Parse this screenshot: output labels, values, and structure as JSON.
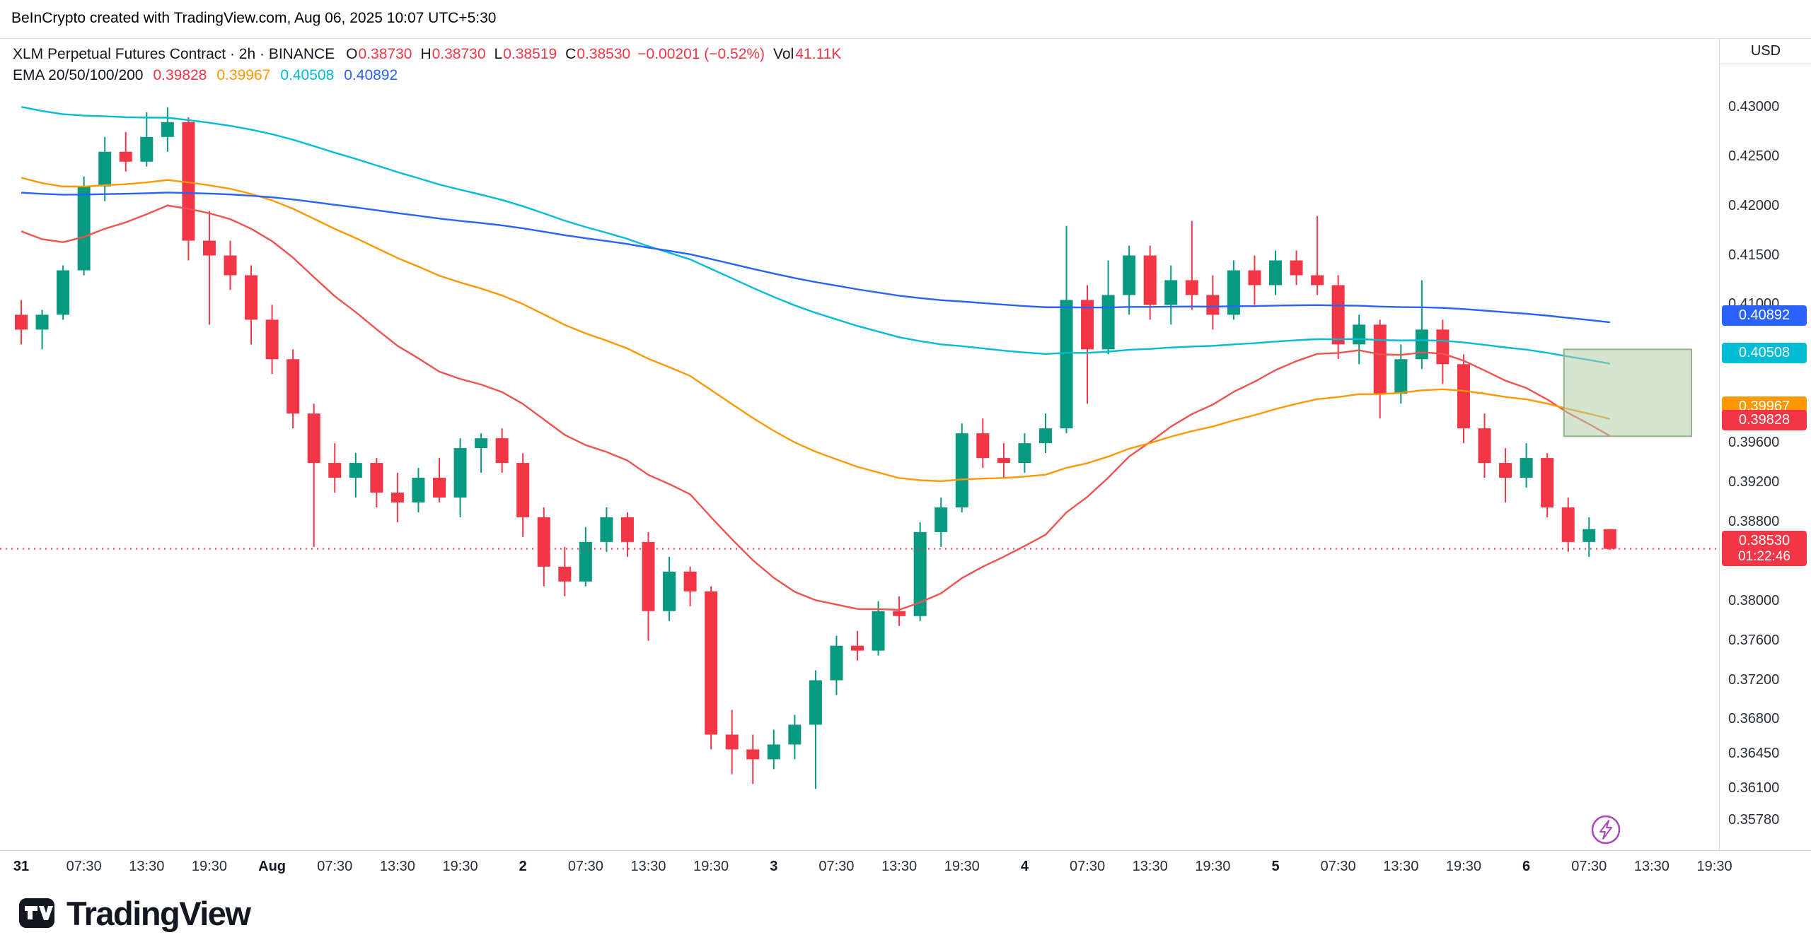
{
  "watermark": "BeInCrypto created with TradingView.com, Aug 06, 2025 10:07 UTC+5:30",
  "legend": {
    "title": "XLM Perpetual Futures Contract · 2h · BINANCE",
    "o_label": "O",
    "o": "0.38730",
    "h_label": "H",
    "h": "0.38730",
    "l_label": "L",
    "l": "0.38519",
    "c_label": "C",
    "c": "0.38530",
    "change": "−0.00201 (−0.52%)",
    "vol_label": "Vol",
    "vol": "41.11K",
    "ema_label": "EMA 20/50/100/200",
    "ema_values": [
      {
        "text": "0.39828",
        "color": "#F23645"
      },
      {
        "text": "0.39967",
        "color": "#FF9800"
      },
      {
        "text": "0.40508",
        "color": "#00BCD4"
      },
      {
        "text": "0.40892",
        "color": "#2962FF"
      }
    ]
  },
  "branding": {
    "name": "TradingView"
  },
  "chart_data": {
    "type": "candlestick",
    "title": "XLM Perpetual Futures Contract · 2h · BINANCE",
    "symbol": "XLM Perpetual Futures Contract",
    "interval": "2h",
    "exchange": "BINANCE",
    "currency": "USD",
    "ohlc_display": {
      "open": 0.3873,
      "high": 0.3873,
      "low": 0.38519,
      "close": 0.3853,
      "change": -0.00201,
      "change_pct": -0.52,
      "volume": "41.11K"
    },
    "ylim": [
      0.3548,
      0.437
    ],
    "up_color": "#089981",
    "down_color": "#F23645",
    "candles": [
      [
        0.409,
        0.4105,
        0.406,
        0.4075
      ],
      [
        0.4075,
        0.4095,
        0.4055,
        0.409
      ],
      [
        0.409,
        0.414,
        0.4085,
        0.4135
      ],
      [
        0.4135,
        0.423,
        0.413,
        0.422
      ],
      [
        0.422,
        0.427,
        0.4205,
        0.4255
      ],
      [
        0.4255,
        0.4275,
        0.4235,
        0.4245
      ],
      [
        0.4245,
        0.4295,
        0.424,
        0.427
      ],
      [
        0.427,
        0.43,
        0.4255,
        0.4285
      ],
      [
        0.4285,
        0.429,
        0.4145,
        0.4165
      ],
      [
        0.4165,
        0.4195,
        0.408,
        0.415
      ],
      [
        0.415,
        0.4165,
        0.4115,
        0.413
      ],
      [
        0.413,
        0.414,
        0.406,
        0.4085
      ],
      [
        0.4085,
        0.41,
        0.403,
        0.4045
      ],
      [
        0.4045,
        0.4055,
        0.3975,
        0.399
      ],
      [
        0.399,
        0.4,
        0.3855,
        0.394
      ],
      [
        0.394,
        0.396,
        0.391,
        0.3925
      ],
      [
        0.3925,
        0.395,
        0.3905,
        0.394
      ],
      [
        0.394,
        0.3945,
        0.3895,
        0.391
      ],
      [
        0.391,
        0.393,
        0.388,
        0.39
      ],
      [
        0.39,
        0.3935,
        0.389,
        0.3925
      ],
      [
        0.3925,
        0.3945,
        0.39,
        0.3905
      ],
      [
        0.3905,
        0.3965,
        0.3885,
        0.3955
      ],
      [
        0.3955,
        0.397,
        0.393,
        0.3965
      ],
      [
        0.3965,
        0.3975,
        0.393,
        0.394
      ],
      [
        0.394,
        0.395,
        0.3865,
        0.3885
      ],
      [
        0.3885,
        0.3895,
        0.3815,
        0.3835
      ],
      [
        0.3835,
        0.3855,
        0.3805,
        0.382
      ],
      [
        0.382,
        0.3875,
        0.3815,
        0.386
      ],
      [
        0.386,
        0.3895,
        0.385,
        0.3885
      ],
      [
        0.3885,
        0.389,
        0.3845,
        0.386
      ],
      [
        0.386,
        0.387,
        0.376,
        0.379
      ],
      [
        0.379,
        0.3845,
        0.378,
        0.383
      ],
      [
        0.383,
        0.3835,
        0.3795,
        0.381
      ],
      [
        0.381,
        0.3815,
        0.365,
        0.3665
      ],
      [
        0.3665,
        0.369,
        0.3625,
        0.365
      ],
      [
        0.365,
        0.3665,
        0.3615,
        0.364
      ],
      [
        0.364,
        0.367,
        0.363,
        0.3655
      ],
      [
        0.3655,
        0.3685,
        0.364,
        0.3675
      ],
      [
        0.3675,
        0.373,
        0.361,
        0.372
      ],
      [
        0.372,
        0.3765,
        0.3705,
        0.3755
      ],
      [
        0.3755,
        0.377,
        0.374,
        0.375
      ],
      [
        0.375,
        0.38,
        0.3745,
        0.379
      ],
      [
        0.379,
        0.3805,
        0.3775,
        0.3785
      ],
      [
        0.3785,
        0.388,
        0.378,
        0.387
      ],
      [
        0.387,
        0.3905,
        0.3855,
        0.3895
      ],
      [
        0.3895,
        0.398,
        0.389,
        0.397
      ],
      [
        0.397,
        0.3985,
        0.3935,
        0.3945
      ],
      [
        0.3945,
        0.396,
        0.3925,
        0.394
      ],
      [
        0.394,
        0.397,
        0.393,
        0.396
      ],
      [
        0.396,
        0.399,
        0.395,
        0.3975
      ],
      [
        0.3975,
        0.418,
        0.397,
        0.4105
      ],
      [
        0.4105,
        0.412,
        0.4,
        0.4055
      ],
      [
        0.4055,
        0.4145,
        0.405,
        0.411
      ],
      [
        0.411,
        0.416,
        0.409,
        0.415
      ],
      [
        0.415,
        0.416,
        0.4085,
        0.41
      ],
      [
        0.41,
        0.414,
        0.408,
        0.4125
      ],
      [
        0.4125,
        0.4185,
        0.4095,
        0.411
      ],
      [
        0.411,
        0.413,
        0.4075,
        0.409
      ],
      [
        0.409,
        0.4145,
        0.4085,
        0.4135
      ],
      [
        0.4135,
        0.415,
        0.41,
        0.412
      ],
      [
        0.412,
        0.4155,
        0.411,
        0.4145
      ],
      [
        0.4145,
        0.4155,
        0.412,
        0.413
      ],
      [
        0.413,
        0.419,
        0.411,
        0.412
      ],
      [
        0.412,
        0.413,
        0.4045,
        0.406
      ],
      [
        0.406,
        0.409,
        0.404,
        0.408
      ],
      [
        0.408,
        0.4085,
        0.3985,
        0.401
      ],
      [
        0.401,
        0.406,
        0.4,
        0.4045
      ],
      [
        0.4045,
        0.4125,
        0.4035,
        0.4075
      ],
      [
        0.4075,
        0.4085,
        0.402,
        0.404
      ],
      [
        0.404,
        0.405,
        0.396,
        0.3975
      ],
      [
        0.3975,
        0.399,
        0.3925,
        0.394
      ],
      [
        0.394,
        0.3955,
        0.39,
        0.3925
      ],
      [
        0.3925,
        0.396,
        0.3915,
        0.3945
      ],
      [
        0.3945,
        0.395,
        0.3885,
        0.3895
      ],
      [
        0.3895,
        0.3905,
        0.385,
        0.386
      ],
      [
        0.386,
        0.3885,
        0.3845,
        0.3873
      ],
      [
        0.3873,
        0.3873,
        0.38519,
        0.3853
      ]
    ],
    "emas": [
      {
        "period": 20,
        "seed": 0.4185,
        "color": "#EF5350",
        "last_value": 0.39828
      },
      {
        "period": 50,
        "seed": 0.4235,
        "color": "#FF9800",
        "last_value": 0.39967
      },
      {
        "period": 100,
        "seed": 0.4305,
        "color": "#00BCD4",
        "last_value": 0.40508
      },
      {
        "period": 200,
        "seed": 0.4215,
        "color": "#2962FF",
        "last_value": 0.40892
      }
    ],
    "price_line": {
      "price": 0.3853,
      "color": "#F23645",
      "style": "dotted"
    },
    "zone": {
      "start_index": 73.8,
      "end_index": 79.9,
      "price_top": 0.4055,
      "price_bottom": 0.3967,
      "fill": "rgba(178,206,166,0.55)",
      "stroke": "#94B38C"
    },
    "y_ticks": [
      {
        "label": "0.43000",
        "price": 0.43
      },
      {
        "label": "0.42500",
        "price": 0.425
      },
      {
        "label": "0.42000",
        "price": 0.42
      },
      {
        "label": "0.41500",
        "price": 0.415
      },
      {
        "label": "0.41000",
        "price": 0.41
      },
      {
        "label": "0.39600",
        "price": 0.396
      },
      {
        "label": "0.39200",
        "price": 0.392
      },
      {
        "label": "0.38800",
        "price": 0.388
      },
      {
        "label": "0.38000",
        "price": 0.38
      },
      {
        "label": "0.37600",
        "price": 0.376
      },
      {
        "label": "0.37200",
        "price": 0.372
      },
      {
        "label": "0.36800",
        "price": 0.368
      },
      {
        "label": "0.36450",
        "price": 0.3645
      },
      {
        "label": "0.36100",
        "price": 0.361
      },
      {
        "label": "0.35780",
        "price": 0.3578
      }
    ],
    "badges": [
      {
        "text": "0.40892",
        "price": 0.40892,
        "bg": "#2962FF",
        "fg": "#ffffff"
      },
      {
        "text": "0.40508",
        "price": 0.40508,
        "bg": "#00BCD4",
        "fg": "#ffffff"
      },
      {
        "text": "0.39967",
        "price": 0.39967,
        "bg": "#FF9800",
        "fg": "#ffffff"
      },
      {
        "text": "0.39828",
        "price": 0.39828,
        "bg": "#F23645",
        "fg": "#ffffff"
      },
      {
        "text": "0.38530",
        "sub": "01:22:46",
        "price": 0.3853,
        "bg": "#F23645",
        "fg": "#ffffff"
      }
    ],
    "x_ticks": [
      {
        "label": "31",
        "index": 0,
        "major": true
      },
      {
        "label": "07:30",
        "index": 3
      },
      {
        "label": "13:30",
        "index": 6
      },
      {
        "label": "19:30",
        "index": 9
      },
      {
        "label": "Aug",
        "index": 12,
        "major": true
      },
      {
        "label": "07:30",
        "index": 15
      },
      {
        "label": "13:30",
        "index": 18
      },
      {
        "label": "19:30",
        "index": 21
      },
      {
        "label": "2",
        "index": 24,
        "major": true
      },
      {
        "label": "07:30",
        "index": 27
      },
      {
        "label": "13:30",
        "index": 30
      },
      {
        "label": "19:30",
        "index": 33
      },
      {
        "label": "3",
        "index": 36,
        "major": true
      },
      {
        "label": "07:30",
        "index": 39
      },
      {
        "label": "13:30",
        "index": 42
      },
      {
        "label": "19:30",
        "index": 45
      },
      {
        "label": "4",
        "index": 48,
        "major": true
      },
      {
        "label": "07:30",
        "index": 51
      },
      {
        "label": "13:30",
        "index": 54
      },
      {
        "label": "19:30",
        "index": 57
      },
      {
        "label": "5",
        "index": 60,
        "major": true
      },
      {
        "label": "07:30",
        "index": 63
      },
      {
        "label": "13:30",
        "index": 66
      },
      {
        "label": "19:30",
        "index": 69
      },
      {
        "label": "6",
        "index": 72,
        "major": true
      },
      {
        "label": "07:30",
        "index": 75
      },
      {
        "label": "13:30",
        "index": 78
      },
      {
        "label": "19:30",
        "index": 81
      }
    ]
  }
}
